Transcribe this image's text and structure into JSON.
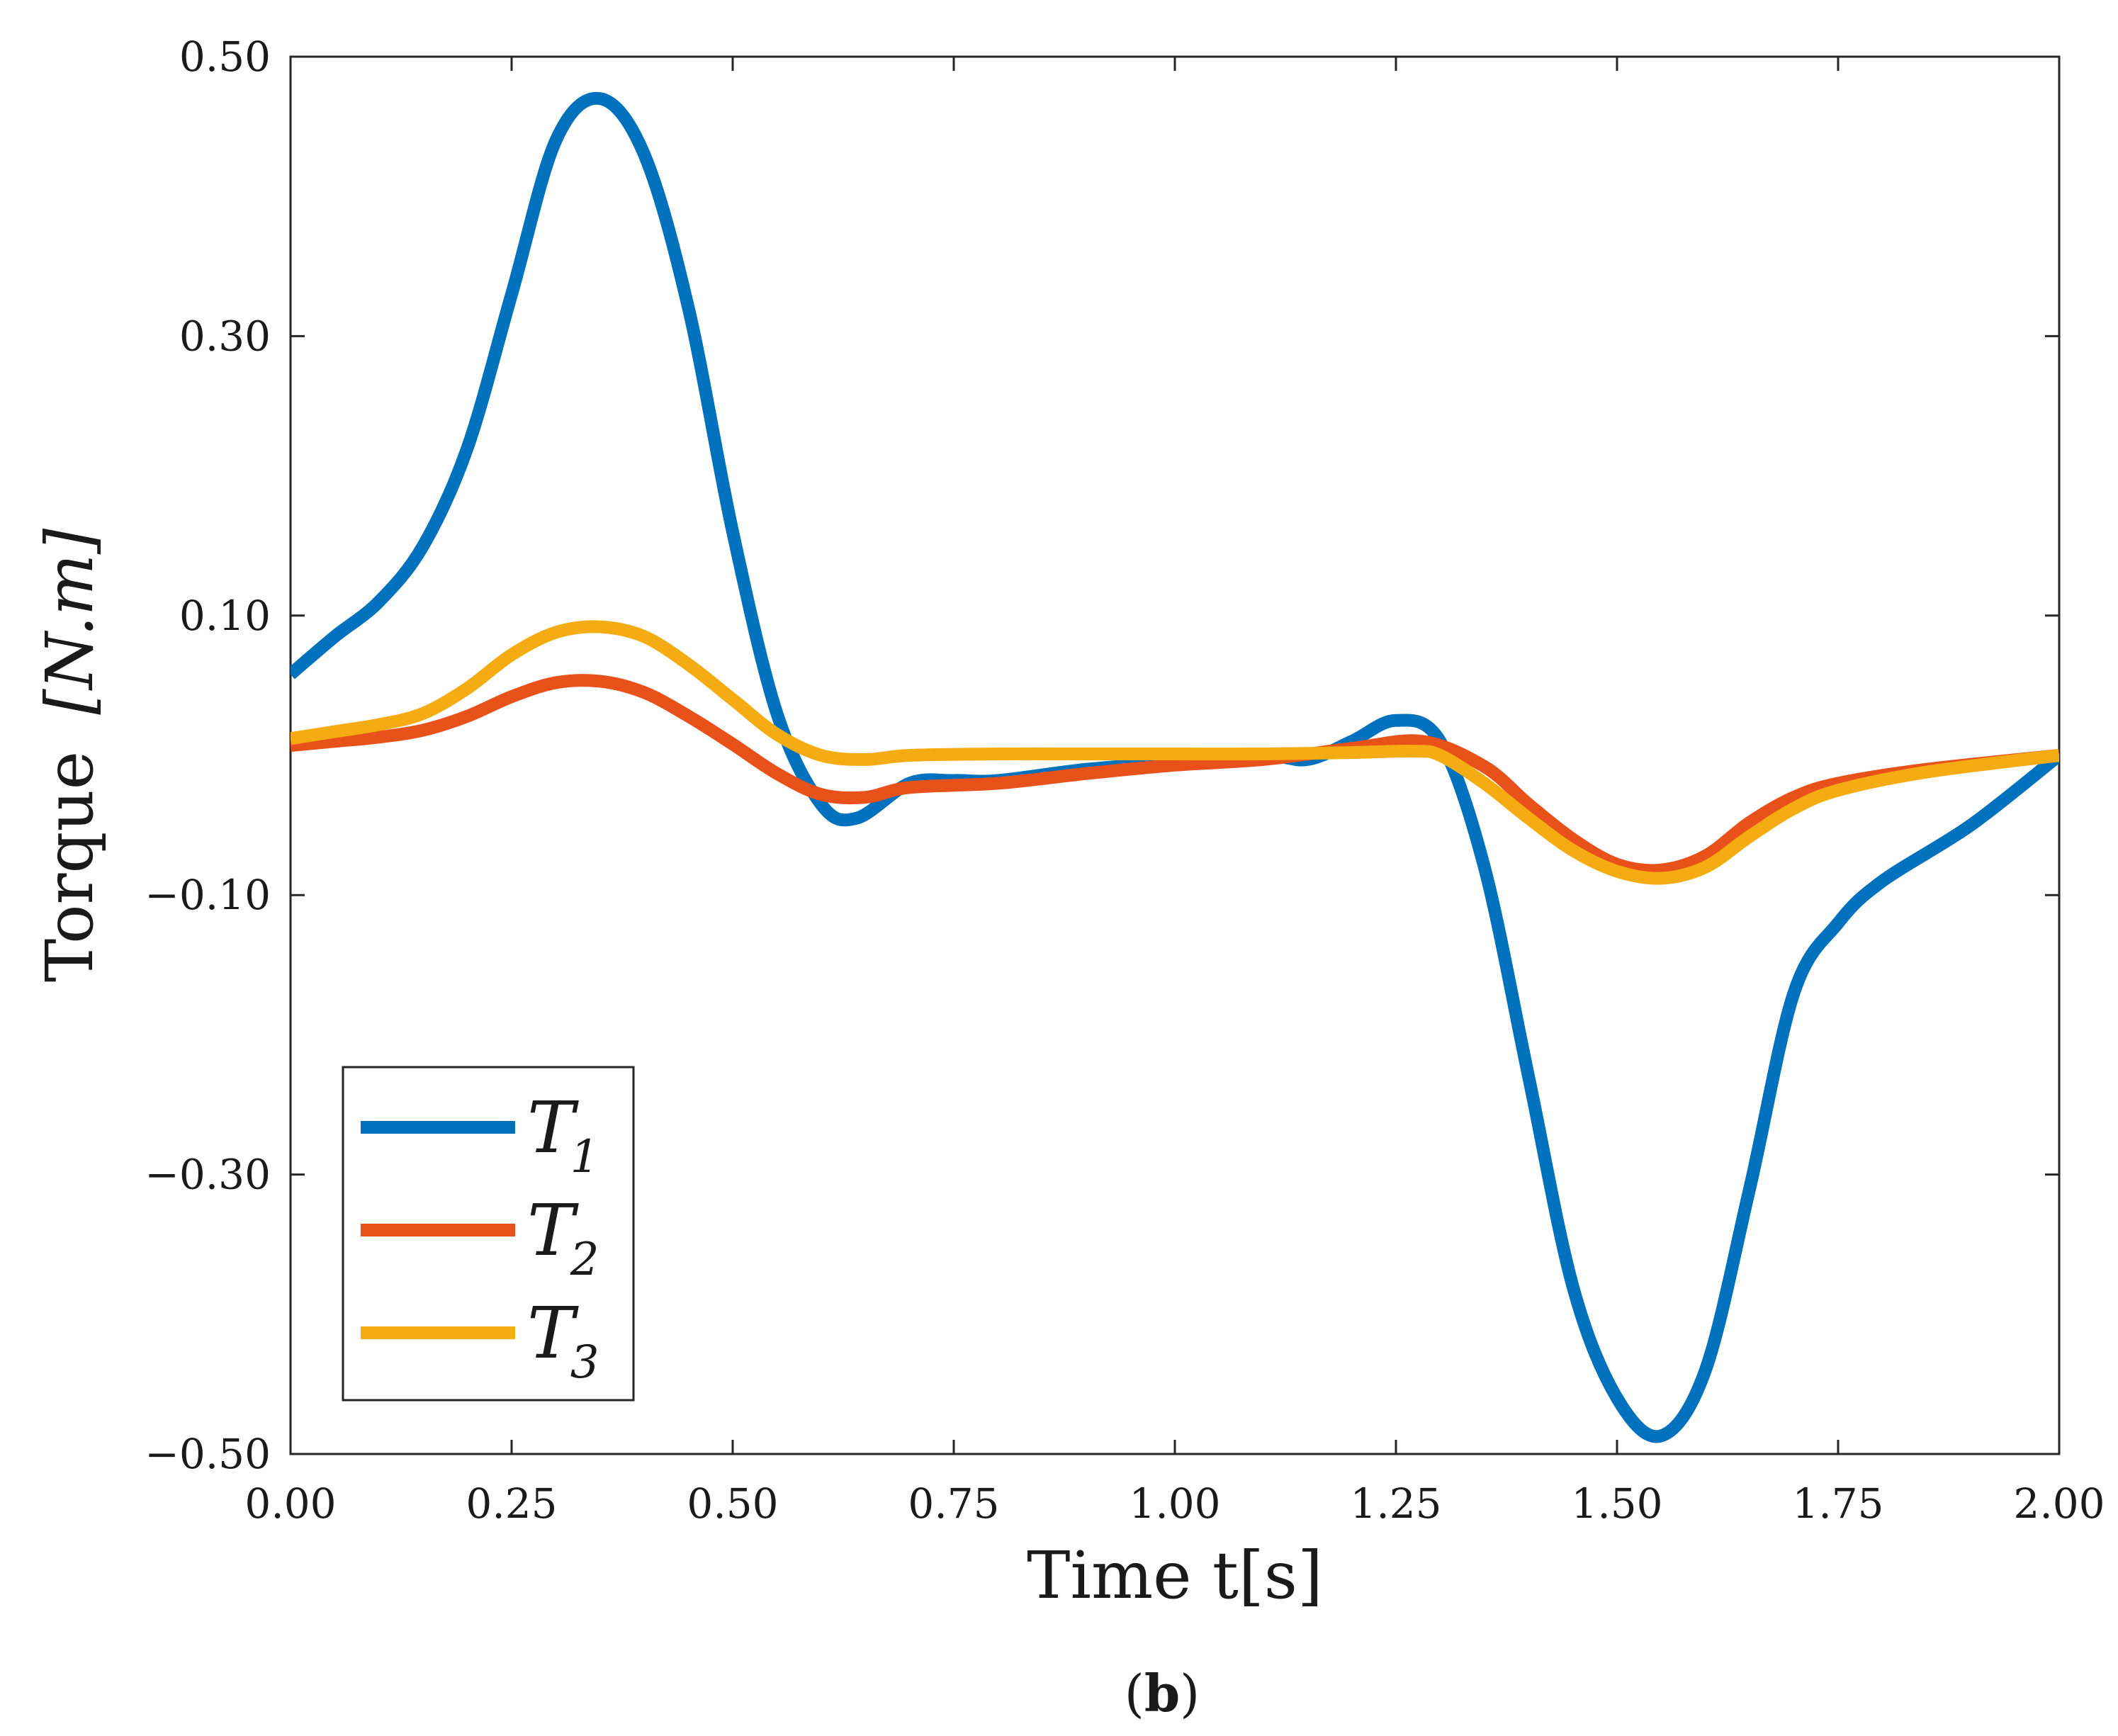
{
  "chart_data": {
    "type": "line",
    "xlabel": "Time t[s]",
    "ylabel_prefix": "Torque",
    "ylabel_unit": "[N.m]",
    "xlim": [
      0,
      2
    ],
    "ylim": [
      -0.5,
      0.5
    ],
    "xticks": [
      0,
      0.25,
      0.5,
      0.75,
      1.0,
      1.25,
      1.5,
      1.75,
      2.0
    ],
    "xtick_labels": [
      "0.00",
      "0.25",
      "0.50",
      "0.75",
      "1.00",
      "1.25",
      "1.50",
      "1.75",
      "2.00"
    ],
    "yticks": [
      0.5,
      0.3,
      0.1,
      -0.1,
      -0.3,
      -0.5
    ],
    "ytick_labels": [
      "0.50",
      "0.30",
      "0.10",
      "−0.10",
      "−0.30",
      "−0.50"
    ],
    "grid": false,
    "legend_position": "bottom-left",
    "caption_open": "(",
    "caption_bold": "b",
    "caption_close": ")",
    "series": [
      {
        "name": "T1",
        "label_main": "T",
        "label_sub": "1",
        "color": "#0072BD",
        "points": [
          [
            0.0,
            0.058
          ],
          [
            0.05,
            0.085
          ],
          [
            0.1,
            0.11
          ],
          [
            0.15,
            0.15
          ],
          [
            0.2,
            0.22
          ],
          [
            0.25,
            0.33
          ],
          [
            0.3,
            0.44
          ],
          [
            0.35,
            0.47
          ],
          [
            0.4,
            0.43
          ],
          [
            0.45,
            0.32
          ],
          [
            0.5,
            0.16
          ],
          [
            0.55,
            0.03
          ],
          [
            0.6,
            -0.035
          ],
          [
            0.64,
            -0.045
          ],
          [
            0.7,
            -0.02
          ],
          [
            0.75,
            -0.018
          ],
          [
            0.8,
            -0.018
          ],
          [
            0.9,
            -0.01
          ],
          [
            1.0,
            -0.005
          ],
          [
            1.1,
            0.0
          ],
          [
            1.15,
            -0.003
          ],
          [
            1.2,
            0.01
          ],
          [
            1.25,
            0.025
          ],
          [
            1.3,
            0.01
          ],
          [
            1.35,
            -0.08
          ],
          [
            1.4,
            -0.23
          ],
          [
            1.45,
            -0.38
          ],
          [
            1.5,
            -0.46
          ],
          [
            1.55,
            -0.487
          ],
          [
            1.6,
            -0.44
          ],
          [
            1.65,
            -0.31
          ],
          [
            1.7,
            -0.17
          ],
          [
            1.75,
            -0.12
          ],
          [
            1.8,
            -0.09
          ],
          [
            1.9,
            -0.05
          ],
          [
            2.0,
            0.0
          ]
        ]
      },
      {
        "name": "T2",
        "label_main": "T",
        "label_sub": "2",
        "color": "#E8521A",
        "points": [
          [
            0.0,
            0.007
          ],
          [
            0.05,
            0.01
          ],
          [
            0.1,
            0.013
          ],
          [
            0.15,
            0.018
          ],
          [
            0.2,
            0.028
          ],
          [
            0.25,
            0.042
          ],
          [
            0.3,
            0.052
          ],
          [
            0.35,
            0.053
          ],
          [
            0.4,
            0.045
          ],
          [
            0.45,
            0.028
          ],
          [
            0.5,
            0.008
          ],
          [
            0.55,
            -0.013
          ],
          [
            0.6,
            -0.028
          ],
          [
            0.65,
            -0.03
          ],
          [
            0.7,
            -0.023
          ],
          [
            0.8,
            -0.02
          ],
          [
            0.9,
            -0.013
          ],
          [
            1.0,
            -0.007
          ],
          [
            1.1,
            -0.003
          ],
          [
            1.2,
            0.005
          ],
          [
            1.28,
            0.01
          ],
          [
            1.35,
            -0.008
          ],
          [
            1.4,
            -0.035
          ],
          [
            1.45,
            -0.06
          ],
          [
            1.5,
            -0.078
          ],
          [
            1.55,
            -0.082
          ],
          [
            1.6,
            -0.072
          ],
          [
            1.65,
            -0.048
          ],
          [
            1.7,
            -0.03
          ],
          [
            1.75,
            -0.02
          ],
          [
            1.85,
            -0.01
          ],
          [
            2.0,
            0.0
          ]
        ]
      },
      {
        "name": "T3",
        "label_main": "T",
        "label_sub": "3",
        "color": "#F5AC12",
        "points": [
          [
            0.0,
            0.012
          ],
          [
            0.05,
            0.017
          ],
          [
            0.1,
            0.022
          ],
          [
            0.15,
            0.03
          ],
          [
            0.2,
            0.048
          ],
          [
            0.25,
            0.072
          ],
          [
            0.3,
            0.088
          ],
          [
            0.35,
            0.092
          ],
          [
            0.4,
            0.085
          ],
          [
            0.45,
            0.065
          ],
          [
            0.5,
            0.04
          ],
          [
            0.55,
            0.015
          ],
          [
            0.6,
            0.0
          ],
          [
            0.65,
            -0.003
          ],
          [
            0.7,
            0.0
          ],
          [
            0.8,
            0.001
          ],
          [
            0.9,
            0.001
          ],
          [
            1.0,
            0.001
          ],
          [
            1.1,
            0.001
          ],
          [
            1.2,
            0.002
          ],
          [
            1.27,
            0.003
          ],
          [
            1.3,
            0.0
          ],
          [
            1.35,
            -0.02
          ],
          [
            1.4,
            -0.045
          ],
          [
            1.45,
            -0.068
          ],
          [
            1.5,
            -0.083
          ],
          [
            1.55,
            -0.088
          ],
          [
            1.6,
            -0.08
          ],
          [
            1.65,
            -0.058
          ],
          [
            1.7,
            -0.038
          ],
          [
            1.75,
            -0.025
          ],
          [
            1.85,
            -0.012
          ],
          [
            2.0,
            0.0
          ]
        ]
      }
    ]
  }
}
